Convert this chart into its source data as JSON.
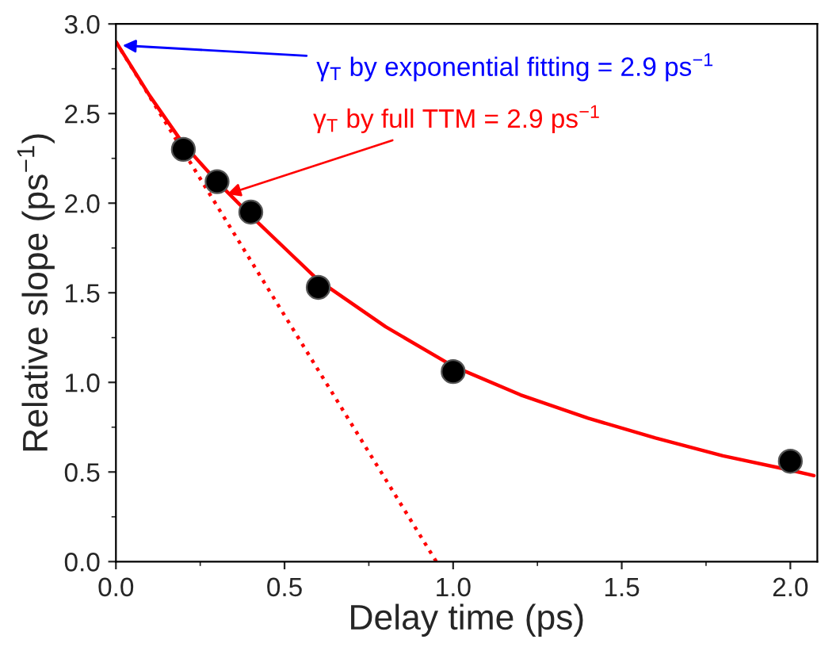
{
  "chart_data": {
    "type": "scatter",
    "xlabel": "Delay time (ps)",
    "ylabel": "Relative slope (ps$^{−1}$)",
    "xlim": [
      0,
      2.08
    ],
    "ylim": [
      0,
      3.0
    ],
    "xticks": [
      {
        "value": 0,
        "label": "0.0"
      },
      0.5,
      {
        "value": 1,
        "label": "1.0"
      },
      1.5,
      {
        "value": 2,
        "label": "2.0"
      }
    ],
    "yticks": [
      {
        "value": 0,
        "label": "0.0"
      },
      0.5,
      {
        "value": 1,
        "label": "1.0"
      },
      1.5,
      {
        "value": 2,
        "label": "2.0"
      },
      2.5,
      {
        "value": 3,
        "label": "3.0"
      }
    ],
    "grid": false,
    "legend": false,
    "series": [
      {
        "color": "#000000",
        "marker": "circle",
        "x": [
          0.2,
          0.3,
          0.4,
          0.6,
          1.0,
          2.0
        ],
        "values": [
          2.3,
          2.12,
          1.95,
          1.53,
          1.06,
          0.56
        ]
      },
      {
        "type": "line",
        "color": "#ff0000",
        "line_style": "solid",
        "marker": "none",
        "x": [
          0,
          0.1,
          0.2,
          0.3,
          0.4,
          0.5,
          0.6,
          0.8,
          1.0,
          1.2,
          1.4,
          1.6,
          1.8,
          2.0,
          2.07
        ],
        "values": [
          2.9,
          2.6,
          2.33,
          2.12,
          1.93,
          1.75,
          1.57,
          1.31,
          1.09,
          0.93,
          0.8,
          0.69,
          0.59,
          0.51,
          0.48
        ]
      },
      {
        "type": "line",
        "color": "#ff0000",
        "line_style": "dotted",
        "marker": "none",
        "x": [
          0,
          0.95
        ],
        "values": [
          2.9,
          0
        ]
      }
    ],
    "annotations": [
      {
        "text": "γ$_{T}$ by exponential fitting = 2.9 ps$^{−1}$",
        "x": 0.02,
        "y": 2.88
      },
      {
        "text": "γ$_{T}$ by full TTM = 2.9 ps$^{−1}$",
        "x": 0.33,
        "y": 2.05
      }
    ]
  }
}
